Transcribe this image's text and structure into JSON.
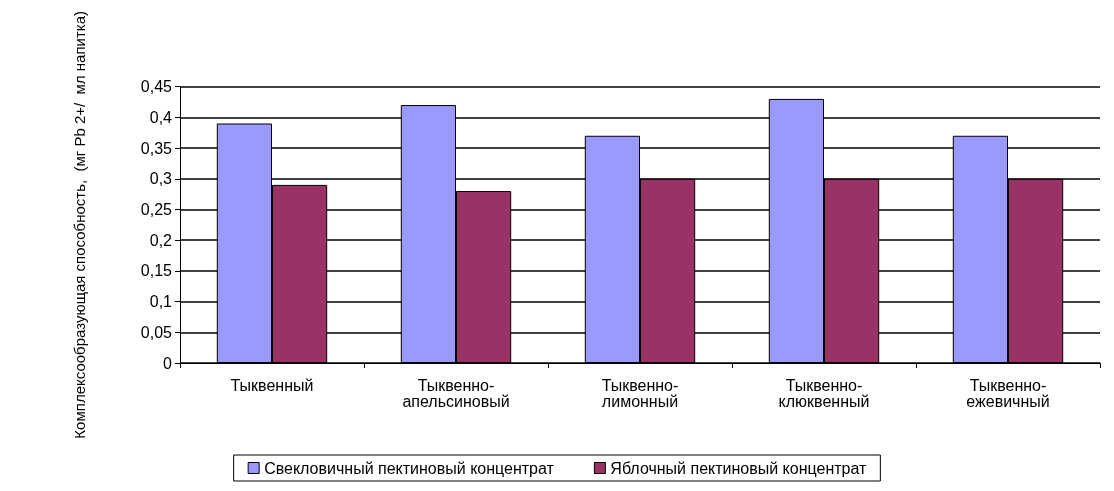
{
  "chart_data": {
    "type": "bar",
    "ylabel": "Комплексообразующая способность,  (мг Pb 2+/  мл напитка)",
    "categories": [
      "Тыквенный",
      "Тыквенно-апельсиновый",
      "Тыквенно-лимонный",
      "Тыквенно-клюквенный",
      "Тыквенно-ежевичный"
    ],
    "series": [
      {
        "name": "Свекловичный пектиновый концентрат",
        "color": "#9999ff",
        "values": [
          0.39,
          0.42,
          0.37,
          0.43,
          0.37
        ]
      },
      {
        "name": "Яблочный пектиновый концентрат",
        "color": "#993366",
        "values": [
          0.29,
          0.28,
          0.3,
          0.3,
          0.3
        ]
      }
    ],
    "ylim": [
      0,
      0.45
    ],
    "yticks": [
      {
        "value": 0,
        "label": "0"
      },
      {
        "value": 0.05,
        "label": "0,05"
      },
      {
        "value": 0.1,
        "label": "0,1"
      },
      {
        "value": 0.15,
        "label": "0,15"
      },
      {
        "value": 0.2,
        "label": "0,2"
      },
      {
        "value": 0.25,
        "label": "0,25"
      },
      {
        "value": 0.3,
        "label": "0,3"
      },
      {
        "value": 0.35,
        "label": "0,35"
      },
      {
        "value": 0.4,
        "label": "0,4"
      },
      {
        "value": 0.45,
        "label": "0,45"
      }
    ],
    "grid": true,
    "legend": "bottom"
  }
}
